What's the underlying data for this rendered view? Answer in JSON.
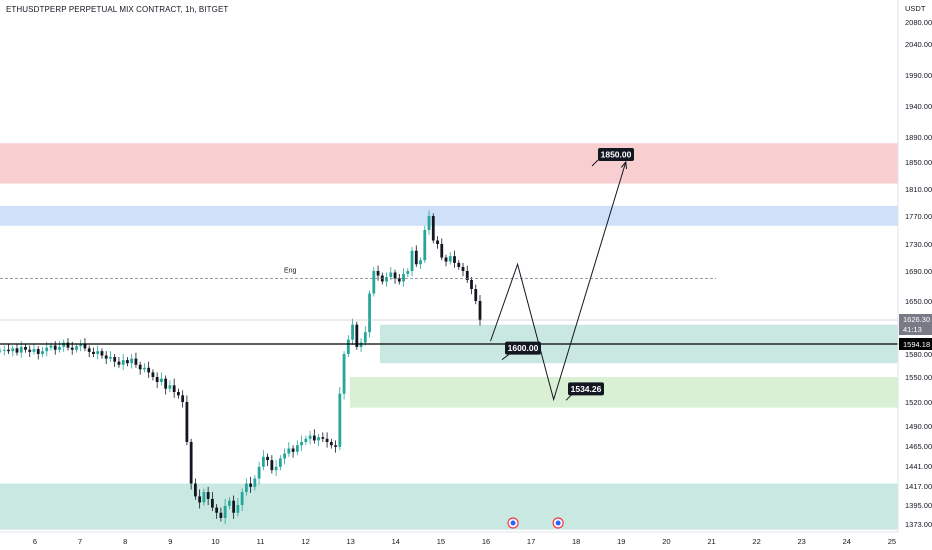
{
  "header": {
    "title": "ETHUSDTPERP PERPETUAL MIX CONTRACT, 1h, BITGET",
    "currency": "USDT"
  },
  "colors": {
    "up": "#26a69a",
    "down": "#131722",
    "supply_zone": "#f7c6c8",
    "blue_zone": "#c6dcf7",
    "demand_zone": "#bfe4dc",
    "light_green_zone": "#d4edcc"
  },
  "chart_data": {
    "type": "candlestick",
    "y_ticks": [
      "2080.00",
      "2040.00",
      "1990.00",
      "1940.00",
      "1890.00",
      "1850.00",
      "1810.00",
      "1770.00",
      "1730.00",
      "1690.00",
      "1650.00",
      "1580.00",
      "1550.00",
      "1520.00",
      "1490.00",
      "1465.00",
      "1441.00",
      "1417.00",
      "1395.00",
      "1373.00"
    ],
    "x_ticks": [
      "6",
      "7",
      "8",
      "9",
      "10",
      "11",
      "12",
      "13",
      "14",
      "15",
      "16",
      "17",
      "18",
      "19",
      "20",
      "21",
      "22",
      "23",
      "24",
      "25"
    ],
    "price_labels": {
      "current": "1626.30",
      "countdown": "41:13",
      "level": "1594.18"
    },
    "zones": [
      {
        "name": "supply",
        "from": 1818,
        "to": 1880
      },
      {
        "name": "blue",
        "from": 1756,
        "to": 1785
      },
      {
        "name": "demand-upper",
        "from": 1568,
        "to": 1620
      },
      {
        "name": "demand-lower",
        "from": 1513,
        "to": 1550
      },
      {
        "name": "demand-bottom",
        "from": 1365,
        "to": 1420
      }
    ],
    "horizontal_lines": [
      {
        "name": "eng-line",
        "price": 1680,
        "style": "dashed",
        "label": "Eng"
      },
      {
        "name": "current-price-line",
        "price": 1626.3,
        "style": "thin"
      },
      {
        "name": "level-line",
        "price": 1594.18,
        "style": "solid"
      }
    ],
    "projection_path": [
      {
        "x": "16.1",
        "price": 1598
      },
      {
        "x": "16.7",
        "price": 1700
      },
      {
        "x": "17.5",
        "price": 1523
      },
      {
        "x": "19.1",
        "price": 1850
      }
    ],
    "callouts": [
      {
        "text": "1850.00",
        "price": 1850
      },
      {
        "text": "1600.00",
        "price": 1600
      },
      {
        "text": "1534.26",
        "price": 1534
      }
    ],
    "event_markers": [
      "16.6",
      "17.6"
    ],
    "series_closes": [
      1585,
      1586,
      1584,
      1588,
      1582,
      1590,
      1586,
      1583,
      1587,
      1580,
      1584,
      1589,
      1592,
      1586,
      1590,
      1596,
      1589,
      1586,
      1591,
      1594,
      1588,
      1583,
      1580,
      1584,
      1578,
      1574,
      1576,
      1570,
      1566,
      1572,
      1568,
      1574,
      1566,
      1560,
      1562,
      1556,
      1550,
      1544,
      1548,
      1536,
      1540,
      1532,
      1528,
      1520,
      1470,
      1420,
      1405,
      1398,
      1410,
      1402,
      1392,
      1386,
      1380,
      1394,
      1400,
      1386,
      1395,
      1410,
      1420,
      1416,
      1426,
      1440,
      1452,
      1448,
      1436,
      1440,
      1450,
      1456,
      1462,
      1458,
      1466,
      1470,
      1474,
      1478,
      1472,
      1476,
      1474,
      1470,
      1466,
      1464,
      1530,
      1580,
      1600,
      1620,
      1590,
      1596,
      1610,
      1660,
      1690,
      1684,
      1676,
      1682,
      1688,
      1680,
      1676,
      1686,
      1690,
      1720,
      1700,
      1706,
      1750,
      1770,
      1735,
      1730,
      1710,
      1704,
      1712,
      1702,
      1696,
      1690,
      1678,
      1666,
      1650,
      1626
    ]
  }
}
